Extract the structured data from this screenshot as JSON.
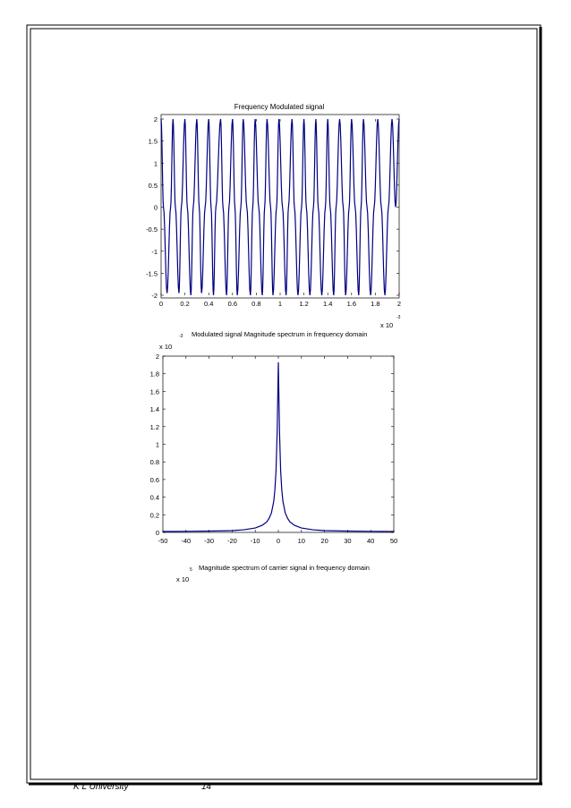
{
  "page": {
    "footer_left": "K L University",
    "footer_page": "14"
  },
  "chart1_extra": {
    "caption": "Modulated signal Magnitude spectrum in frequency domain",
    "caption_sup": "-3"
  },
  "chart2_extra": {
    "caption": "Magnitude spectrum of carrier signal in frequency domain",
    "caption_sup": "5",
    "caption_base": "x 10"
  },
  "chart_data": [
    {
      "type": "line",
      "title": "Frequency Modulated signal",
      "xlabel": "",
      "ylabel": "",
      "xlim": [
        0,
        2
      ],
      "ylim": [
        -2,
        2
      ],
      "x_multiplier": "x 10",
      "x_multiplier_exp": "-3",
      "xticks": [
        "0",
        "0.2",
        "0.4",
        "0.6",
        "0.8",
        "1",
        "1.2",
        "1.4",
        "1.6",
        "1.8",
        "2"
      ],
      "yticks": [
        "2",
        "1.5",
        "1",
        "0.5",
        "0",
        "-0.5",
        "-1",
        "-1.5",
        "-2"
      ],
      "color": "#000080",
      "series": [
        {
          "x": [
            0,
            0.02,
            0.05,
            0.08,
            0.1,
            0.12,
            0.15,
            0.17,
            0.2,
            0.22,
            0.25,
            0.27,
            0.3,
            0.32,
            0.34,
            0.37,
            0.4,
            0.42,
            0.44,
            0.46,
            0.5,
            0.52,
            0.55,
            0.57,
            0.6,
            0.62,
            0.64,
            0.67,
            0.69,
            0.72,
            0.75,
            0.77,
            0.79,
            0.82,
            0.85,
            0.87,
            0.89,
            0.92,
            0.94,
            0.97,
            0.99,
            1.02,
            1.05,
            1.07,
            1.1,
            1.12,
            1.15,
            1.18,
            1.2,
            1.22,
            1.25,
            1.28,
            1.3,
            1.32,
            1.35,
            1.38,
            1.4,
            1.42,
            1.45,
            1.47,
            1.5,
            1.53,
            1.55,
            1.58,
            1.6,
            1.63,
            1.66,
            1.68,
            1.7,
            1.73,
            1.76,
            1.79,
            1.82,
            1.85,
            1.88,
            1.91,
            1.94,
            1.97,
            2.0
          ],
          "y": [
            2,
            0,
            -1.95,
            0,
            2,
            0,
            -1.95,
            0,
            2,
            0,
            -2,
            0,
            2,
            0,
            -1.95,
            0,
            2,
            0,
            -2,
            0,
            2,
            0,
            -2,
            0,
            2,
            0,
            -2,
            0,
            2,
            0,
            -2,
            0,
            2,
            0,
            -2,
            0,
            2,
            0,
            -2,
            0,
            2,
            0,
            -2,
            0,
            2,
            0,
            -2,
            0,
            2,
            0,
            -2,
            0,
            2,
            0,
            -2,
            0,
            2,
            0,
            -2,
            0,
            2,
            0,
            -2,
            0,
            2,
            0,
            -2,
            0,
            2,
            0,
            -2,
            0,
            2,
            0,
            -2,
            0,
            2,
            0,
            2
          ]
        }
      ]
    },
    {
      "type": "line",
      "title": "",
      "xlabel": "",
      "ylabel": "",
      "xlim": [
        -50,
        50
      ],
      "ylim": [
        0,
        2
      ],
      "y_multiplier": "x 10",
      "xticks": [
        "-50",
        "-40",
        "-30",
        "-20",
        "-10",
        "0",
        "10",
        "20",
        "30",
        "40",
        "50"
      ],
      "yticks": [
        "2",
        "1.8",
        "1.6",
        "1.4",
        "1.2",
        "1",
        "0.8",
        "0.6",
        "0.4",
        "0.2",
        "0"
      ],
      "color": "#000080",
      "series": [
        {
          "x": [
            -50,
            -40,
            -30,
            -20,
            -15,
            -10,
            -7,
            -5,
            -4,
            -3,
            -2,
            -1.5,
            -1,
            -0.5,
            0,
            0.5,
            1,
            1.5,
            2,
            3,
            4,
            5,
            7,
            10,
            15,
            20,
            30,
            40,
            50
          ],
          "y": [
            0.01,
            0.012,
            0.015,
            0.02,
            0.03,
            0.05,
            0.08,
            0.12,
            0.16,
            0.22,
            0.35,
            0.48,
            0.7,
            1.15,
            1.93,
            1.15,
            0.7,
            0.48,
            0.35,
            0.22,
            0.16,
            0.12,
            0.08,
            0.05,
            0.03,
            0.02,
            0.015,
            0.012,
            0.01
          ]
        }
      ]
    }
  ]
}
